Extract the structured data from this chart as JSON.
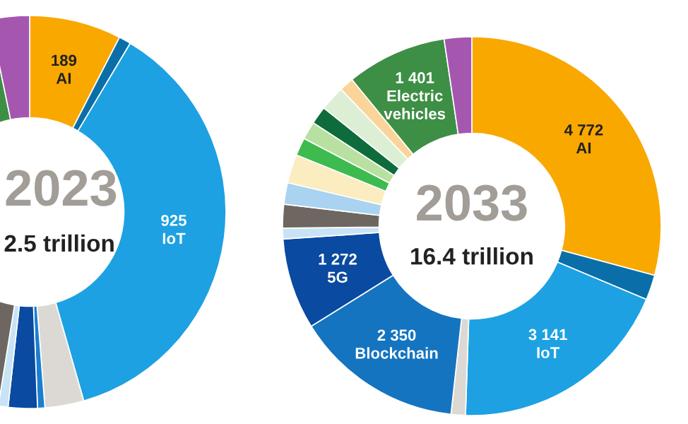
{
  "chart_data": [
    {
      "type": "donut",
      "title": "2023",
      "subtitle": "2.5 trillion",
      "categories": [
        "AI",
        null,
        "IoT",
        null,
        null,
        null,
        null,
        null,
        null,
        null
      ],
      "values": [
        189,
        25,
        925,
        80,
        15,
        60,
        20,
        440,
        665,
        81
      ],
      "value_labels": [
        "189",
        null,
        "925",
        null,
        null,
        null,
        null,
        null,
        null,
        null
      ],
      "colors": [
        "#f9a800",
        "#0a6fa8",
        "#1da1e2",
        "#dcd9d5",
        "#1a7fd0",
        "#0a4aa0",
        "#c8e3f5",
        "#6e6661",
        "#3d8f45",
        "#a557b0"
      ]
    },
    {
      "type": "donut",
      "title": "2033",
      "subtitle": "16.4 trillion",
      "categories": [
        "AI",
        null,
        "IoT",
        null,
        "Blockchain",
        "5G",
        null,
        null,
        null,
        null,
        null,
        null,
        null,
        null,
        null,
        "Electric vehicles",
        null
      ],
      "values": [
        4772,
        350,
        3141,
        200,
        2350,
        1272,
        150,
        330,
        300,
        400,
        250,
        250,
        250,
        350,
        200,
        1401,
        384
      ],
      "value_labels": [
        "4 772",
        null,
        "3 141",
        null,
        "2 350",
        "1 272",
        null,
        null,
        null,
        null,
        null,
        null,
        null,
        null,
        null,
        "1 401",
        null
      ],
      "colors": [
        "#f9a800",
        "#0a6fa8",
        "#1da1e2",
        "#dcd9d5",
        "#1574c0",
        "#0a4aa0",
        "#c8e3f5",
        "#6e6661",
        "#a9d3f0",
        "#fbedc0",
        "#3dbb4e",
        "#b8e0a0",
        "#0d6b3c",
        "#dcefd5",
        "#fbd49a",
        "#3d8f45",
        "#a557b0"
      ]
    }
  ]
}
